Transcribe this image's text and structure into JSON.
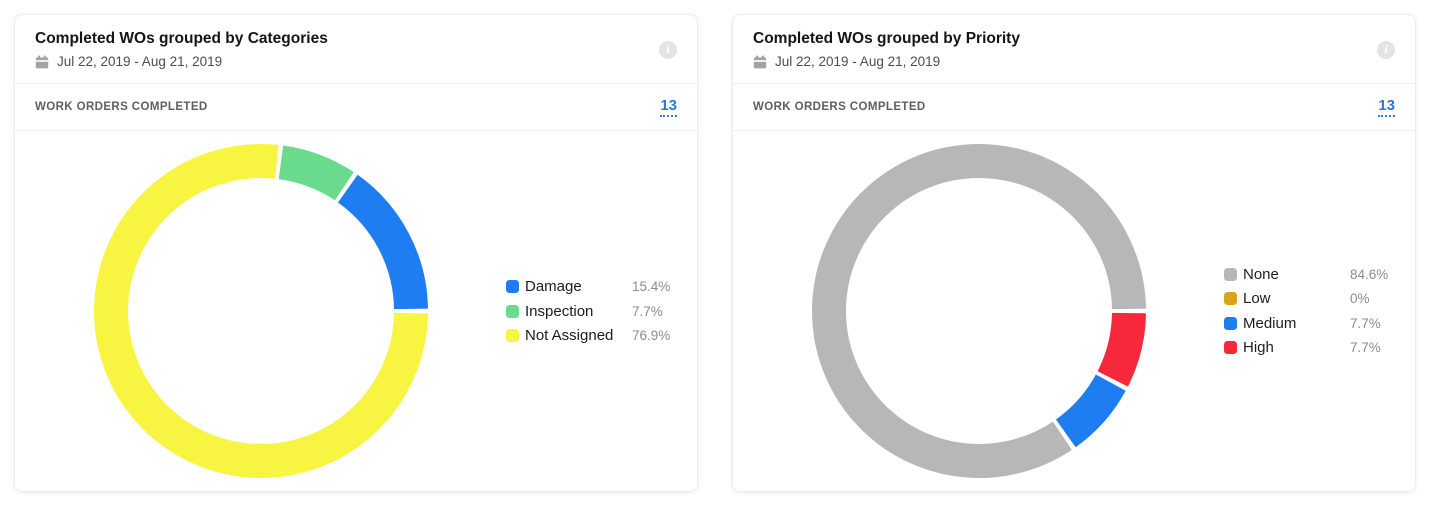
{
  "icons": {
    "info_glyph": "i"
  },
  "cards": [
    {
      "title": "Completed WOs grouped by Categories",
      "date_range": "Jul 22, 2019 - Aug 21, 2019",
      "metric_label": "WORK ORDERS COMPLETED",
      "metric_value": "13"
    },
    {
      "title": "Completed WOs grouped by Priority",
      "date_range": "Jul 22, 2019 - Aug 21, 2019",
      "metric_label": "WORK ORDERS COMPLETED",
      "metric_value": "13"
    }
  ],
  "chart_data": [
    {
      "type": "pie",
      "subtype": "donut",
      "title": "Completed WOs grouped by Categories",
      "legend_position": "right",
      "start_angle_deg": 90,
      "draw_order": "reversed-clockwise",
      "segments": [
        {
          "label": "Damage",
          "value": 15.4,
          "pct": "15.4%",
          "color": "#1e7df0"
        },
        {
          "label": "Inspection",
          "value": 7.7,
          "pct": "7.7%",
          "color": "#6adb8d"
        },
        {
          "label": "Not Assigned",
          "value": 76.9,
          "pct": "76.9%",
          "color": "#f8f542"
        }
      ]
    },
    {
      "type": "pie",
      "subtype": "donut",
      "title": "Completed WOs grouped by Priority",
      "legend_position": "right",
      "start_angle_deg": 90,
      "draw_order": "reversed-clockwise",
      "segments": [
        {
          "label": "None",
          "value": 84.6,
          "pct": "84.6%",
          "color": "#b7b7b9"
        },
        {
          "label": "Low",
          "value": 0,
          "pct": "0%",
          "color": "#d7a51b"
        },
        {
          "label": "Medium",
          "value": 7.7,
          "pct": "7.7%",
          "color": "#1e7df0"
        },
        {
          "label": "High",
          "value": 7.7,
          "pct": "7.7%",
          "color": "#f8283c"
        }
      ]
    }
  ]
}
